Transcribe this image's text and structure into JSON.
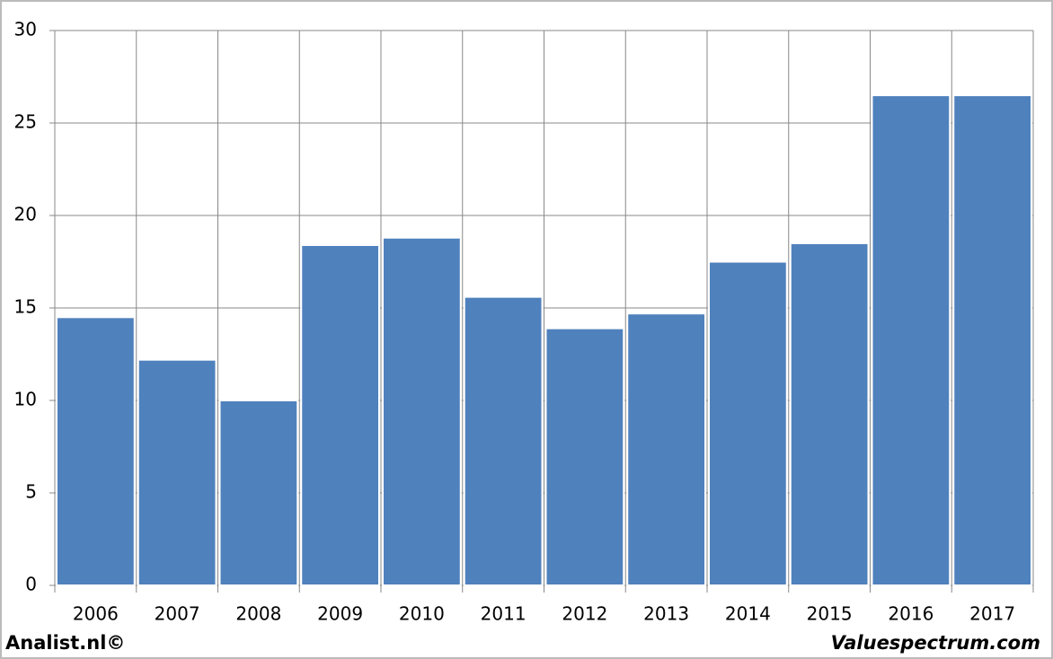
{
  "chart_data": {
    "type": "bar",
    "categories": [
      "2006",
      "2007",
      "2008",
      "2009",
      "2010",
      "2011",
      "2012",
      "2013",
      "2014",
      "2015",
      "2016",
      "2017"
    ],
    "values": [
      14.5,
      12.2,
      10.0,
      18.4,
      18.8,
      15.6,
      13.9,
      14.7,
      17.5,
      18.5,
      26.5,
      26.5
    ],
    "color": "#4f81bd",
    "ylim": [
      0,
      30
    ],
    "yticks": [
      0,
      5,
      10,
      15,
      20,
      25,
      30
    ],
    "grid": true
  },
  "footer": {
    "left": "Analist.nl©",
    "right": "Valuespectrum.com"
  }
}
